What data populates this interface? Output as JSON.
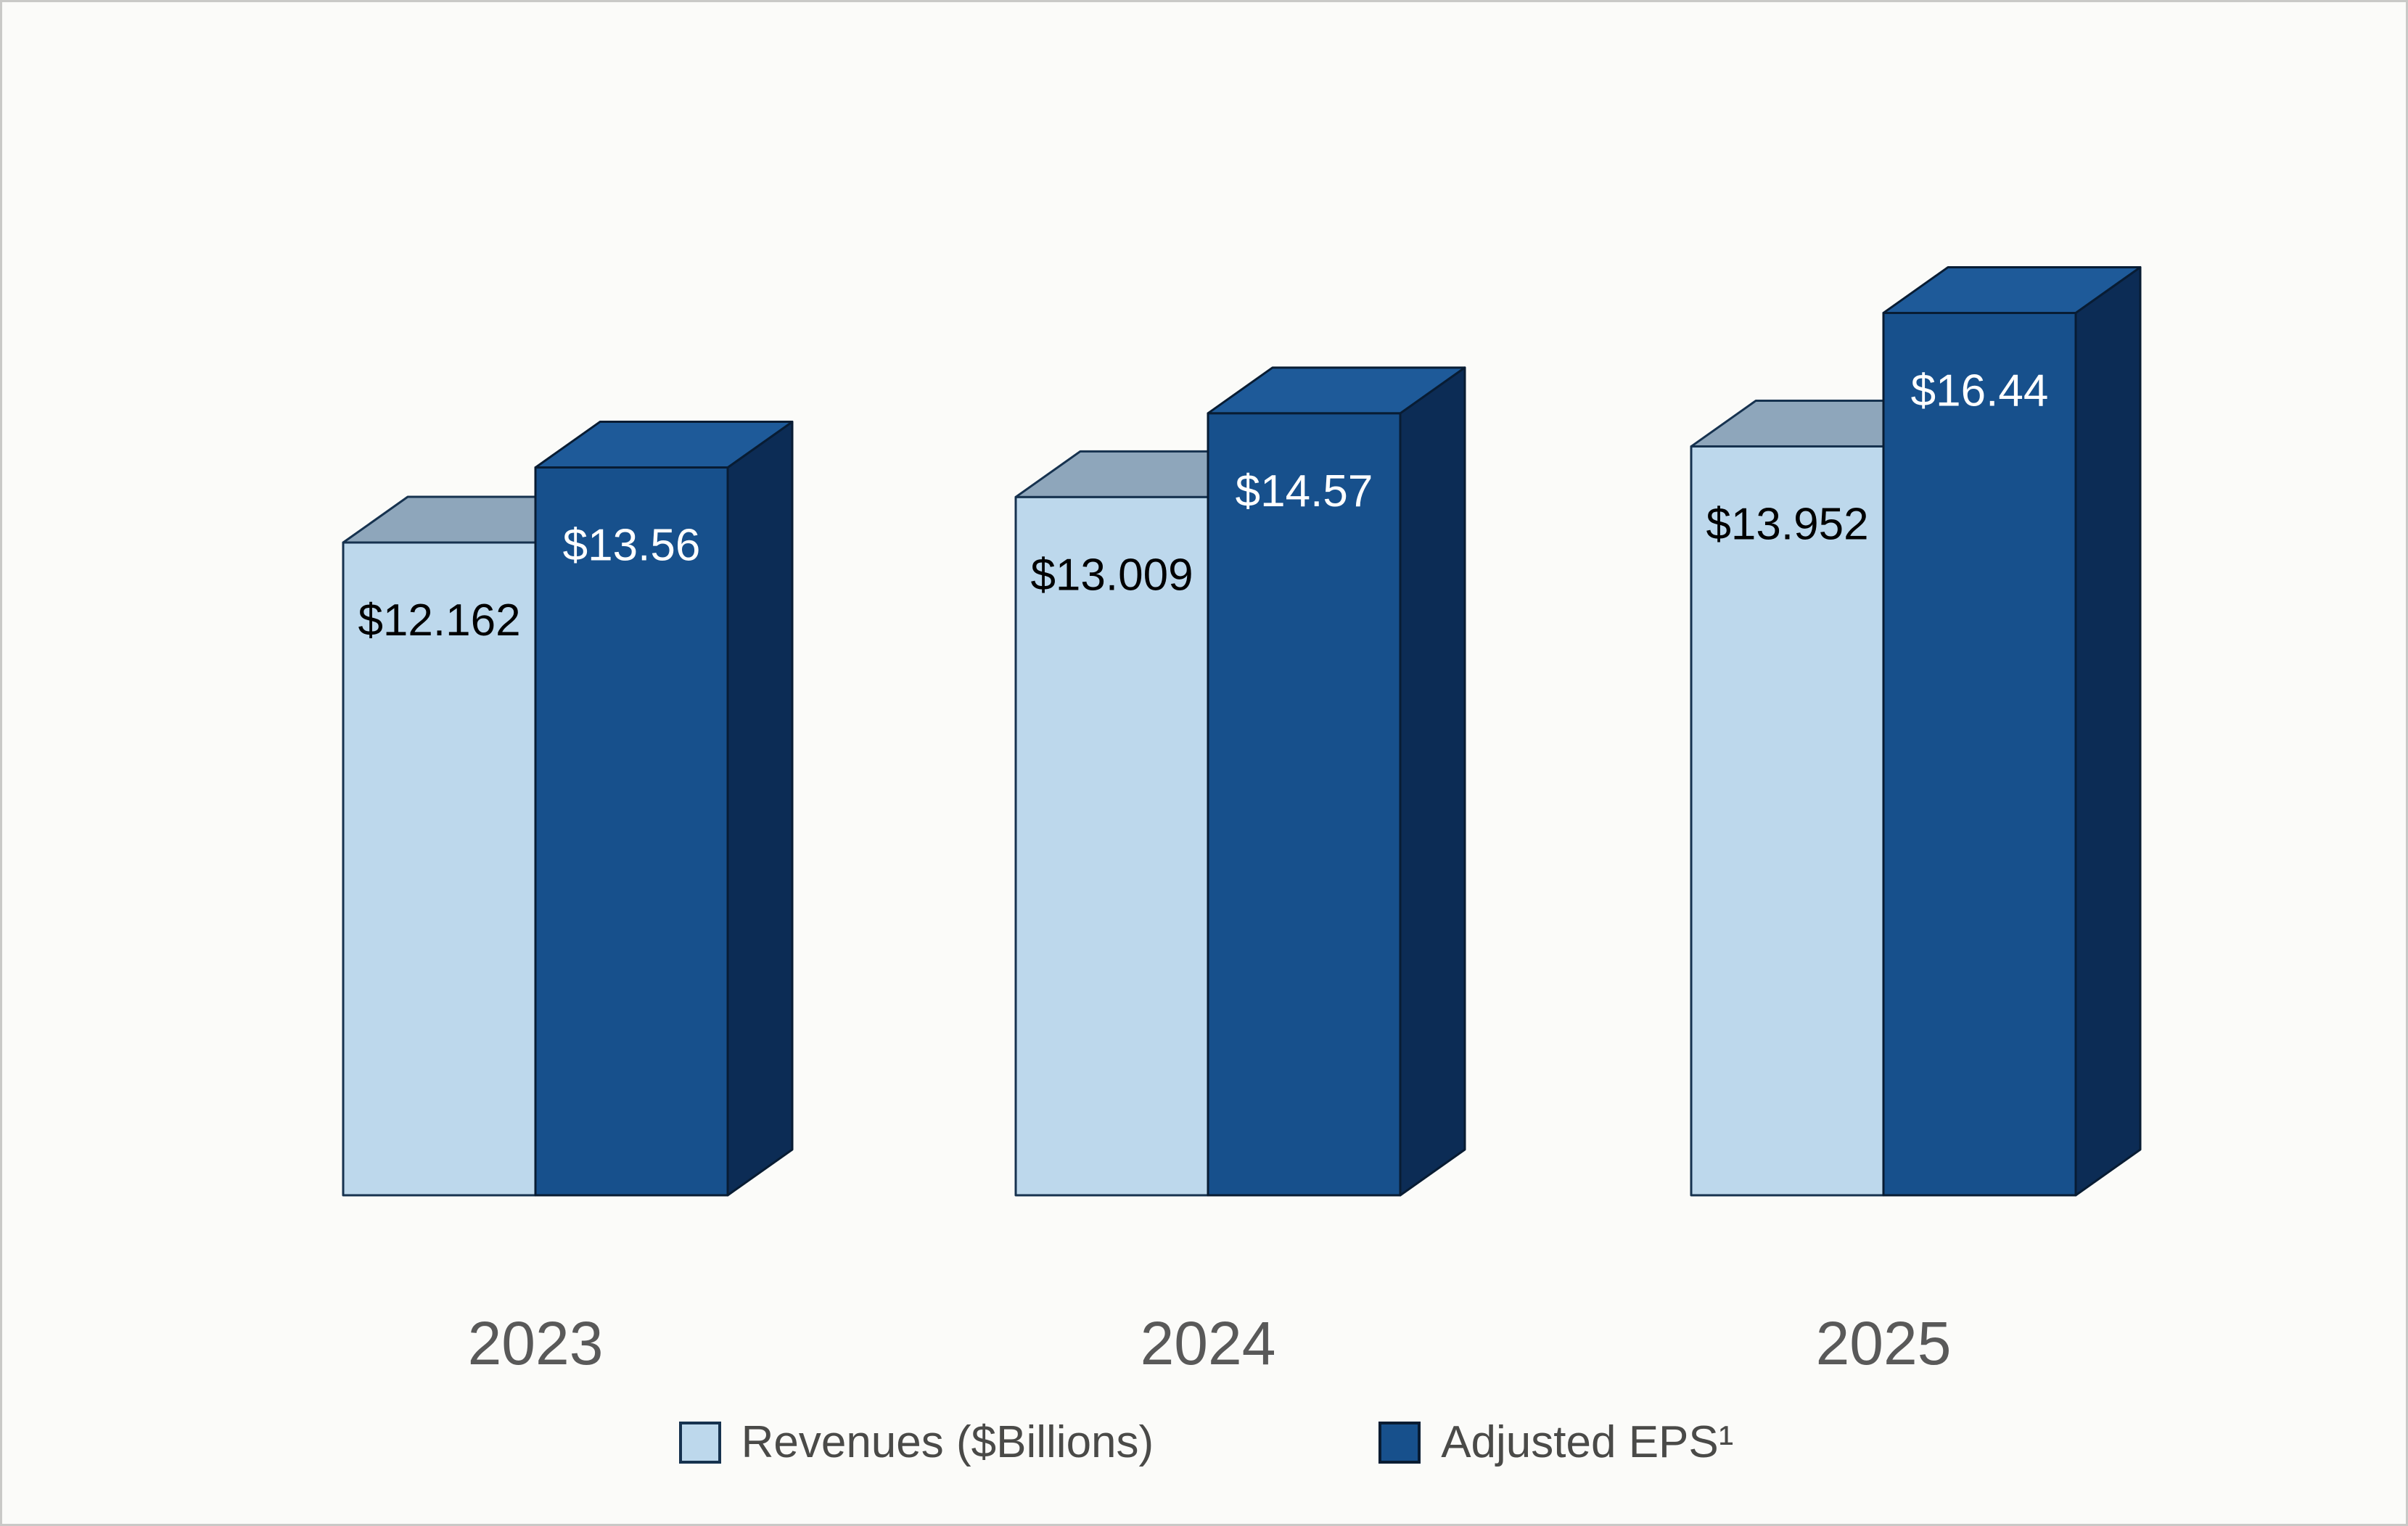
{
  "chart_data": {
    "type": "bar",
    "style": "3d-column",
    "title": "",
    "xlabel": "",
    "ylabel": "",
    "axes_visible": false,
    "grid": false,
    "legend_position": "bottom",
    "categories": [
      "2023",
      "2024",
      "2025"
    ],
    "series": [
      {
        "name": "Revenues ($Billions)",
        "values": [
          12.162,
          13.009,
          13.952
        ],
        "labels": [
          "$12.162",
          "$13.009",
          "$13.952"
        ],
        "label_color": "#000000"
      },
      {
        "name": "Adjusted EPS¹",
        "values": [
          13.56,
          14.57,
          16.44
        ],
        "labels": [
          "$13.56",
          "$14.57",
          "$16.44"
        ],
        "label_color": "#ffffff"
      }
    ]
  },
  "colors": {
    "background": "#fbfbf9",
    "light_front": "#bdd8ec",
    "light_top": "#8ea6bb",
    "light_side": "#7e96ac",
    "light_stroke": "#16324f",
    "dark_front": "#17508c",
    "dark_top": "#1e5a99",
    "dark_side": "#0c2c55",
    "dark_stroke": "#081c33",
    "category_label": "#595959",
    "legend_text": "#4a4a48"
  },
  "legend": {
    "items": [
      {
        "label": "Revenues ($Billions)",
        "swatch": "light_front"
      },
      {
        "label": "Adjusted EPS¹",
        "swatch": "dark_front"
      }
    ]
  }
}
